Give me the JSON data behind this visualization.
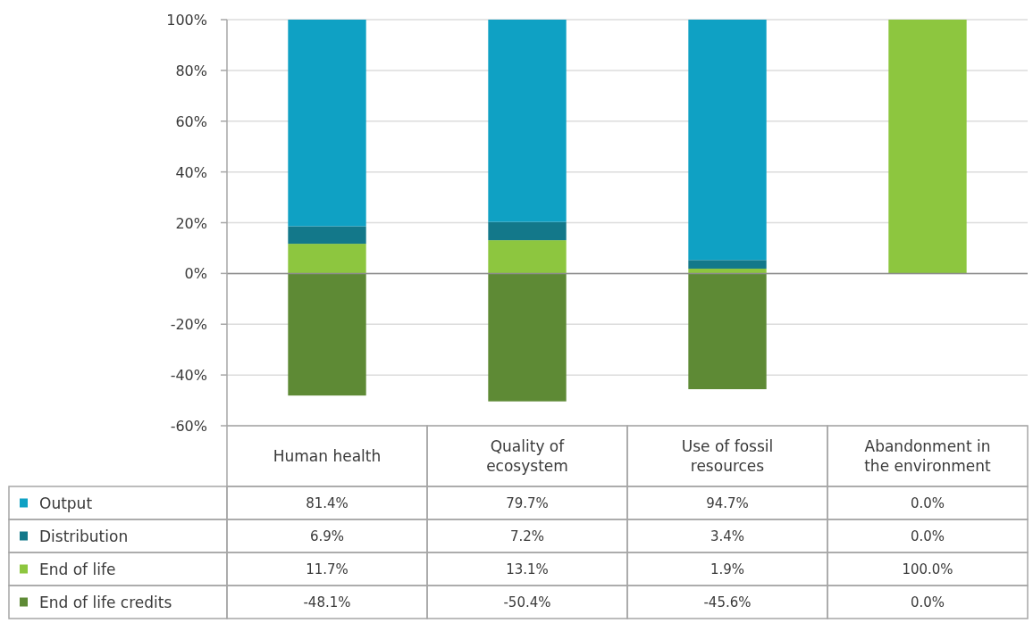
{
  "chart_data": {
    "type": "bar",
    "stacked": true,
    "categories": [
      "Human health",
      "Quality of ecosystem",
      "Use of fossil resources",
      "Abandonment in the environment"
    ],
    "series": [
      {
        "name": "End of life credits",
        "color": "#5e8a35",
        "values": [
          -48.1,
          -50.4,
          -45.6,
          0.0
        ],
        "value_labels": [
          "-48.1%",
          "-50.4%",
          "-45.6%",
          "0.0%"
        ]
      },
      {
        "name": "End of life",
        "color": "#8dc63f",
        "values": [
          11.7,
          13.1,
          1.9,
          100.0
        ],
        "value_labels": [
          "11.7%",
          "13.1%",
          "1.9%",
          "100.0%"
        ]
      },
      {
        "name": "Distribution",
        "color": "#13788a",
        "values": [
          6.9,
          7.2,
          3.4,
          0.0
        ],
        "value_labels": [
          "6.9%",
          "7.2%",
          "3.4%",
          "0.0%"
        ]
      },
      {
        "name": "Output",
        "color": "#0fa1c4",
        "values": [
          81.4,
          79.7,
          94.7,
          0.0
        ],
        "value_labels": [
          "81.4%",
          "79.7%",
          "94.7%",
          "0.0%"
        ]
      }
    ],
    "ylim": [
      -60,
      100
    ],
    "yticks": [
      {
        "value": -60,
        "label": "-60%"
      },
      {
        "value": -40,
        "label": "-40%"
      },
      {
        "value": -20,
        "label": "-20%"
      },
      {
        "value": 0,
        "label": "0%"
      },
      {
        "value": 20,
        "label": "20%"
      },
      {
        "value": 40,
        "label": "40%"
      },
      {
        "value": 60,
        "label": "60%"
      },
      {
        "value": 80,
        "label": "80%"
      },
      {
        "value": 100,
        "label": "100%"
      }
    ],
    "grid": "y",
    "legend": "bottom left"
  }
}
